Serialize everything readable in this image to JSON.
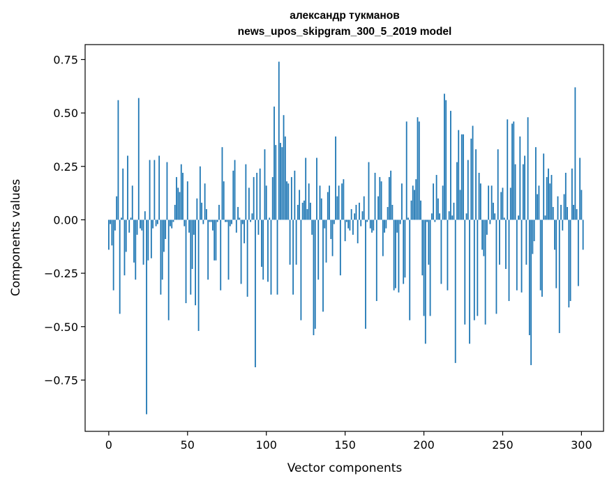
{
  "chart_data": {
    "type": "bar",
    "title": "александр тукманов",
    "subtitle": "news_upos_skipgram_300_5_2019 model",
    "xlabel": "Vector components",
    "ylabel": "Components values",
    "xlim": [
      -15,
      314
    ],
    "ylim": [
      -0.99,
      0.82
    ],
    "xticks": [
      0,
      50,
      100,
      150,
      200,
      250,
      300
    ],
    "yticks": [
      -0.75,
      -0.5,
      -0.25,
      0.0,
      0.25,
      0.5,
      0.75
    ],
    "ytick_labels": [
      "−0.75",
      "−0.50",
      "−0.25",
      "0.00",
      "0.25",
      "0.50",
      "0.75"
    ],
    "bar_color": "#1f77b4",
    "grid": false,
    "values": [
      -0.14,
      -0.02,
      -0.12,
      -0.33,
      -0.05,
      0.11,
      0.56,
      -0.44,
      0.01,
      0.24,
      -0.26,
      -0.15,
      0.3,
      -0.06,
      0.01,
      0.16,
      -0.2,
      -0.28,
      -0.07,
      0.57,
      -0.04,
      -0.05,
      -0.21,
      0.04,
      -0.91,
      -0.19,
      0.28,
      -0.18,
      -0.04,
      0.28,
      -0.03,
      -0.02,
      0.3,
      -0.35,
      -0.28,
      -0.15,
      -0.09,
      0.27,
      -0.47,
      -0.03,
      -0.04,
      -0.01,
      0.07,
      0.2,
      0.15,
      0.13,
      0.26,
      0.22,
      -0.03,
      -0.39,
      0.18,
      -0.06,
      -0.35,
      -0.23,
      -0.07,
      -0.4,
      0.1,
      -0.52,
      0.25,
      0.08,
      -0.02,
      0.17,
      0.05,
      -0.28,
      -0.01,
      -0.01,
      -0.05,
      -0.19,
      -0.19,
      -0.01,
      0.07,
      -0.33,
      0.34,
      0.18,
      -0.01,
      -0.01,
      -0.28,
      -0.03,
      -0.02,
      0.23,
      0.28,
      -0.06,
      0.06,
      0.01,
      -0.3,
      -0.02,
      -0.11,
      0.26,
      -0.36,
      0.15,
      -0.01,
      0.03,
      0.2,
      -0.69,
      0.22,
      -0.07,
      0.24,
      -0.22,
      -0.28,
      0.33,
      0.16,
      -0.29,
      0.01,
      -0.35,
      0.2,
      0.53,
      0.35,
      -0.35,
      0.74,
      0.36,
      0.34,
      0.49,
      0.39,
      0.18,
      0.17,
      -0.21,
      0.2,
      -0.35,
      0.23,
      -0.21,
      0.07,
      0.14,
      -0.47,
      0.08,
      0.09,
      0.29,
      0.05,
      0.17,
      0.08,
      -0.07,
      -0.54,
      -0.51,
      0.29,
      -0.28,
      0.16,
      0.1,
      -0.43,
      -0.04,
      -0.2,
      0.13,
      0.16,
      -0.09,
      -0.17,
      -0.02,
      0.39,
      0.11,
      0.16,
      -0.26,
      0.17,
      0.19,
      -0.1,
      -0.01,
      -0.04,
      -0.05,
      0.05,
      -0.07,
      0.03,
      0.07,
      -0.11,
      0.08,
      -0.03,
      0.04,
      0.11,
      -0.51,
      -0.01,
      0.27,
      -0.04,
      -0.06,
      -0.05,
      0.22,
      -0.38,
      0.11,
      0.2,
      0.18,
      -0.17,
      -0.06,
      -0.04,
      0.06,
      0.2,
      0.23,
      0.07,
      -0.33,
      -0.32,
      -0.06,
      -0.34,
      -0.02,
      0.17,
      -0.3,
      -0.27,
      0.46,
      0.01,
      -0.47,
      0.09,
      0.16,
      0.14,
      0.19,
      0.48,
      0.46,
      0.09,
      -0.26,
      -0.45,
      -0.58,
      -0.01,
      -0.21,
      -0.45,
      0.03,
      0.17,
      -0.01,
      0.21,
      0.1,
      0.03,
      -0.3,
      0.16,
      0.59,
      0.56,
      -0.33,
      0.04,
      0.51,
      0.02,
      0.08,
      -0.67,
      0.27,
      0.42,
      0.14,
      0.4,
      0.4,
      -0.49,
      0.03,
      0.28,
      -0.58,
      0.38,
      0.44,
      -0.47,
      0.33,
      -0.45,
      0.22,
      0.17,
      -0.14,
      -0.17,
      -0.49,
      -0.07,
      0.16,
      -0.02,
      0.16,
      0.08,
      0.03,
      -0.44,
      0.33,
      -0.21,
      0.13,
      0.15,
      0.01,
      -0.23,
      0.47,
      -0.38,
      0.15,
      0.45,
      0.46,
      0.26,
      -0.33,
      0.02,
      0.39,
      -0.34,
      0.26,
      0.3,
      -0.21,
      0.48,
      -0.54,
      -0.68,
      -0.16,
      -0.1,
      0.34,
      0.12,
      0.16,
      -0.33,
      -0.36,
      0.31,
      0.02,
      0.2,
      0.24,
      0.17,
      0.21,
      0.06,
      -0.14,
      -0.32,
      0.11,
      -0.53,
      0.07,
      -0.05,
      0.12,
      0.22,
      0.06,
      -0.41,
      -0.38,
      0.24,
      0.07,
      0.62,
      0.05,
      -0.31,
      0.29,
      0.14,
      -0.14
    ]
  }
}
